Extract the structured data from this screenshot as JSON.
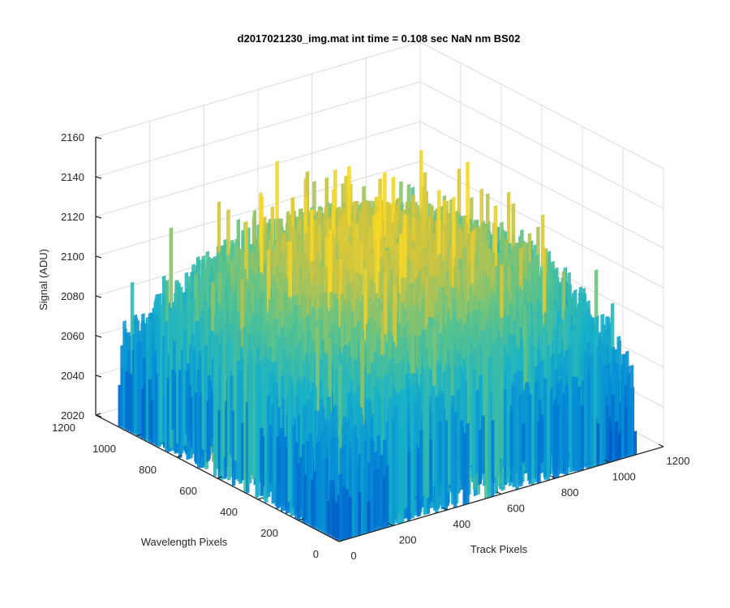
{
  "chart_data": {
    "type": "surface",
    "title": "d2017021230_img.mat int time = 0.108 sec  NaN nm BS02",
    "xlabel": "Track Pixels",
    "ylabel": "Wavelength Pixels",
    "zlabel": "Signal (ADU)",
    "xlim": [
      0,
      1200
    ],
    "ylim": [
      0,
      1200
    ],
    "zlim": [
      2020,
      2160
    ],
    "x_ticks": [
      "0",
      "200",
      "400",
      "600",
      "800",
      "1000",
      "1200"
    ],
    "y_ticks": [
      "0",
      "200",
      "400",
      "600",
      "800",
      "1000",
      "1200"
    ],
    "z_ticks": [
      "2020",
      "2040",
      "2060",
      "2080",
      "2100",
      "2120",
      "2140",
      "2160"
    ],
    "x_ticks_num": [
      0,
      200,
      400,
      600,
      800,
      1000,
      1200
    ],
    "y_ticks_num": [
      0,
      200,
      400,
      600,
      800,
      1000,
      1200
    ],
    "z_ticks_num": [
      2020,
      2040,
      2060,
      2080,
      2100,
      2120,
      2140,
      2160
    ],
    "data_extent": {
      "x": [
        0,
        1100
      ],
      "y": [
        0,
        1100
      ]
    },
    "surface_profile": {
      "baseline_signal_center": 2100,
      "baseline_signal_edges": 2045,
      "noise_range": [
        2020,
        2160
      ],
      "peak_signal": 2158
    },
    "grid": true,
    "colormap": "parula",
    "colors": {
      "low": "#0072BD",
      "mid": "#19B2C8",
      "midhigh": "#59C28A",
      "high": "#E0C43A",
      "axis": "#262626",
      "grid": "#dcdcdc"
    }
  }
}
